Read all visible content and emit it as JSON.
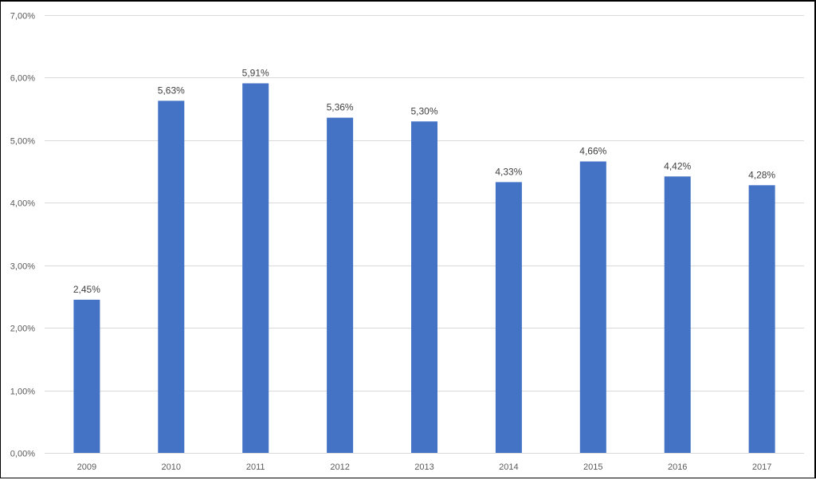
{
  "chart_data": {
    "type": "bar",
    "title": "",
    "xlabel": "",
    "ylabel": "",
    "categories": [
      "2009",
      "2010",
      "2011",
      "2012",
      "2013",
      "2014",
      "2015",
      "2016",
      "2017"
    ],
    "values": [
      2.45,
      5.63,
      5.91,
      5.36,
      5.3,
      4.33,
      4.66,
      4.42,
      4.28
    ],
    "data_labels": [
      "2,45%",
      "5,63%",
      "5,91%",
      "5,36%",
      "5,30%",
      "4,33%",
      "4,66%",
      "4,42%",
      "4,28%"
    ],
    "ylim": [
      0,
      7
    ],
    "y_ticks": [
      0,
      1,
      2,
      3,
      4,
      5,
      6,
      7
    ],
    "y_tick_labels": [
      "0,00%",
      "1,00%",
      "2,00%",
      "3,00%",
      "4,00%",
      "5,00%",
      "6,00%",
      "7,00%"
    ],
    "grid": true,
    "legend": "none",
    "colors": {
      "bar": "#4472C4",
      "grid": "#D9D9D9",
      "axis_text": "#595959",
      "data_label_text": "#404040"
    }
  }
}
